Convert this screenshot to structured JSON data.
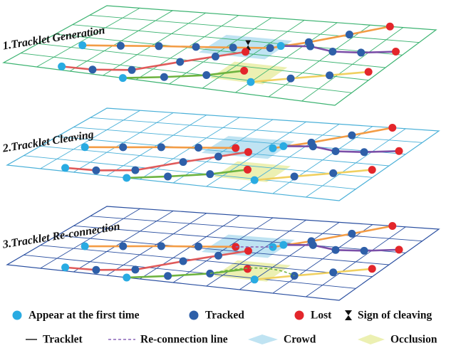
{
  "panels": [
    {
      "label": "1.Tracklet Generation"
    },
    {
      "label": "2.Tracklet Cleaving"
    },
    {
      "label": "3.Tracklet Re-connection"
    }
  ],
  "legend": [
    {
      "label": "Appear at the first time"
    },
    {
      "label": "Tracked"
    },
    {
      "label": "Lost"
    },
    {
      "label": "Sign of cleaving"
    },
    {
      "label": "Tracklet"
    },
    {
      "label": "Re-connection line"
    },
    {
      "label": "Crowd"
    },
    {
      "label": "Occlusion"
    }
  ]
}
